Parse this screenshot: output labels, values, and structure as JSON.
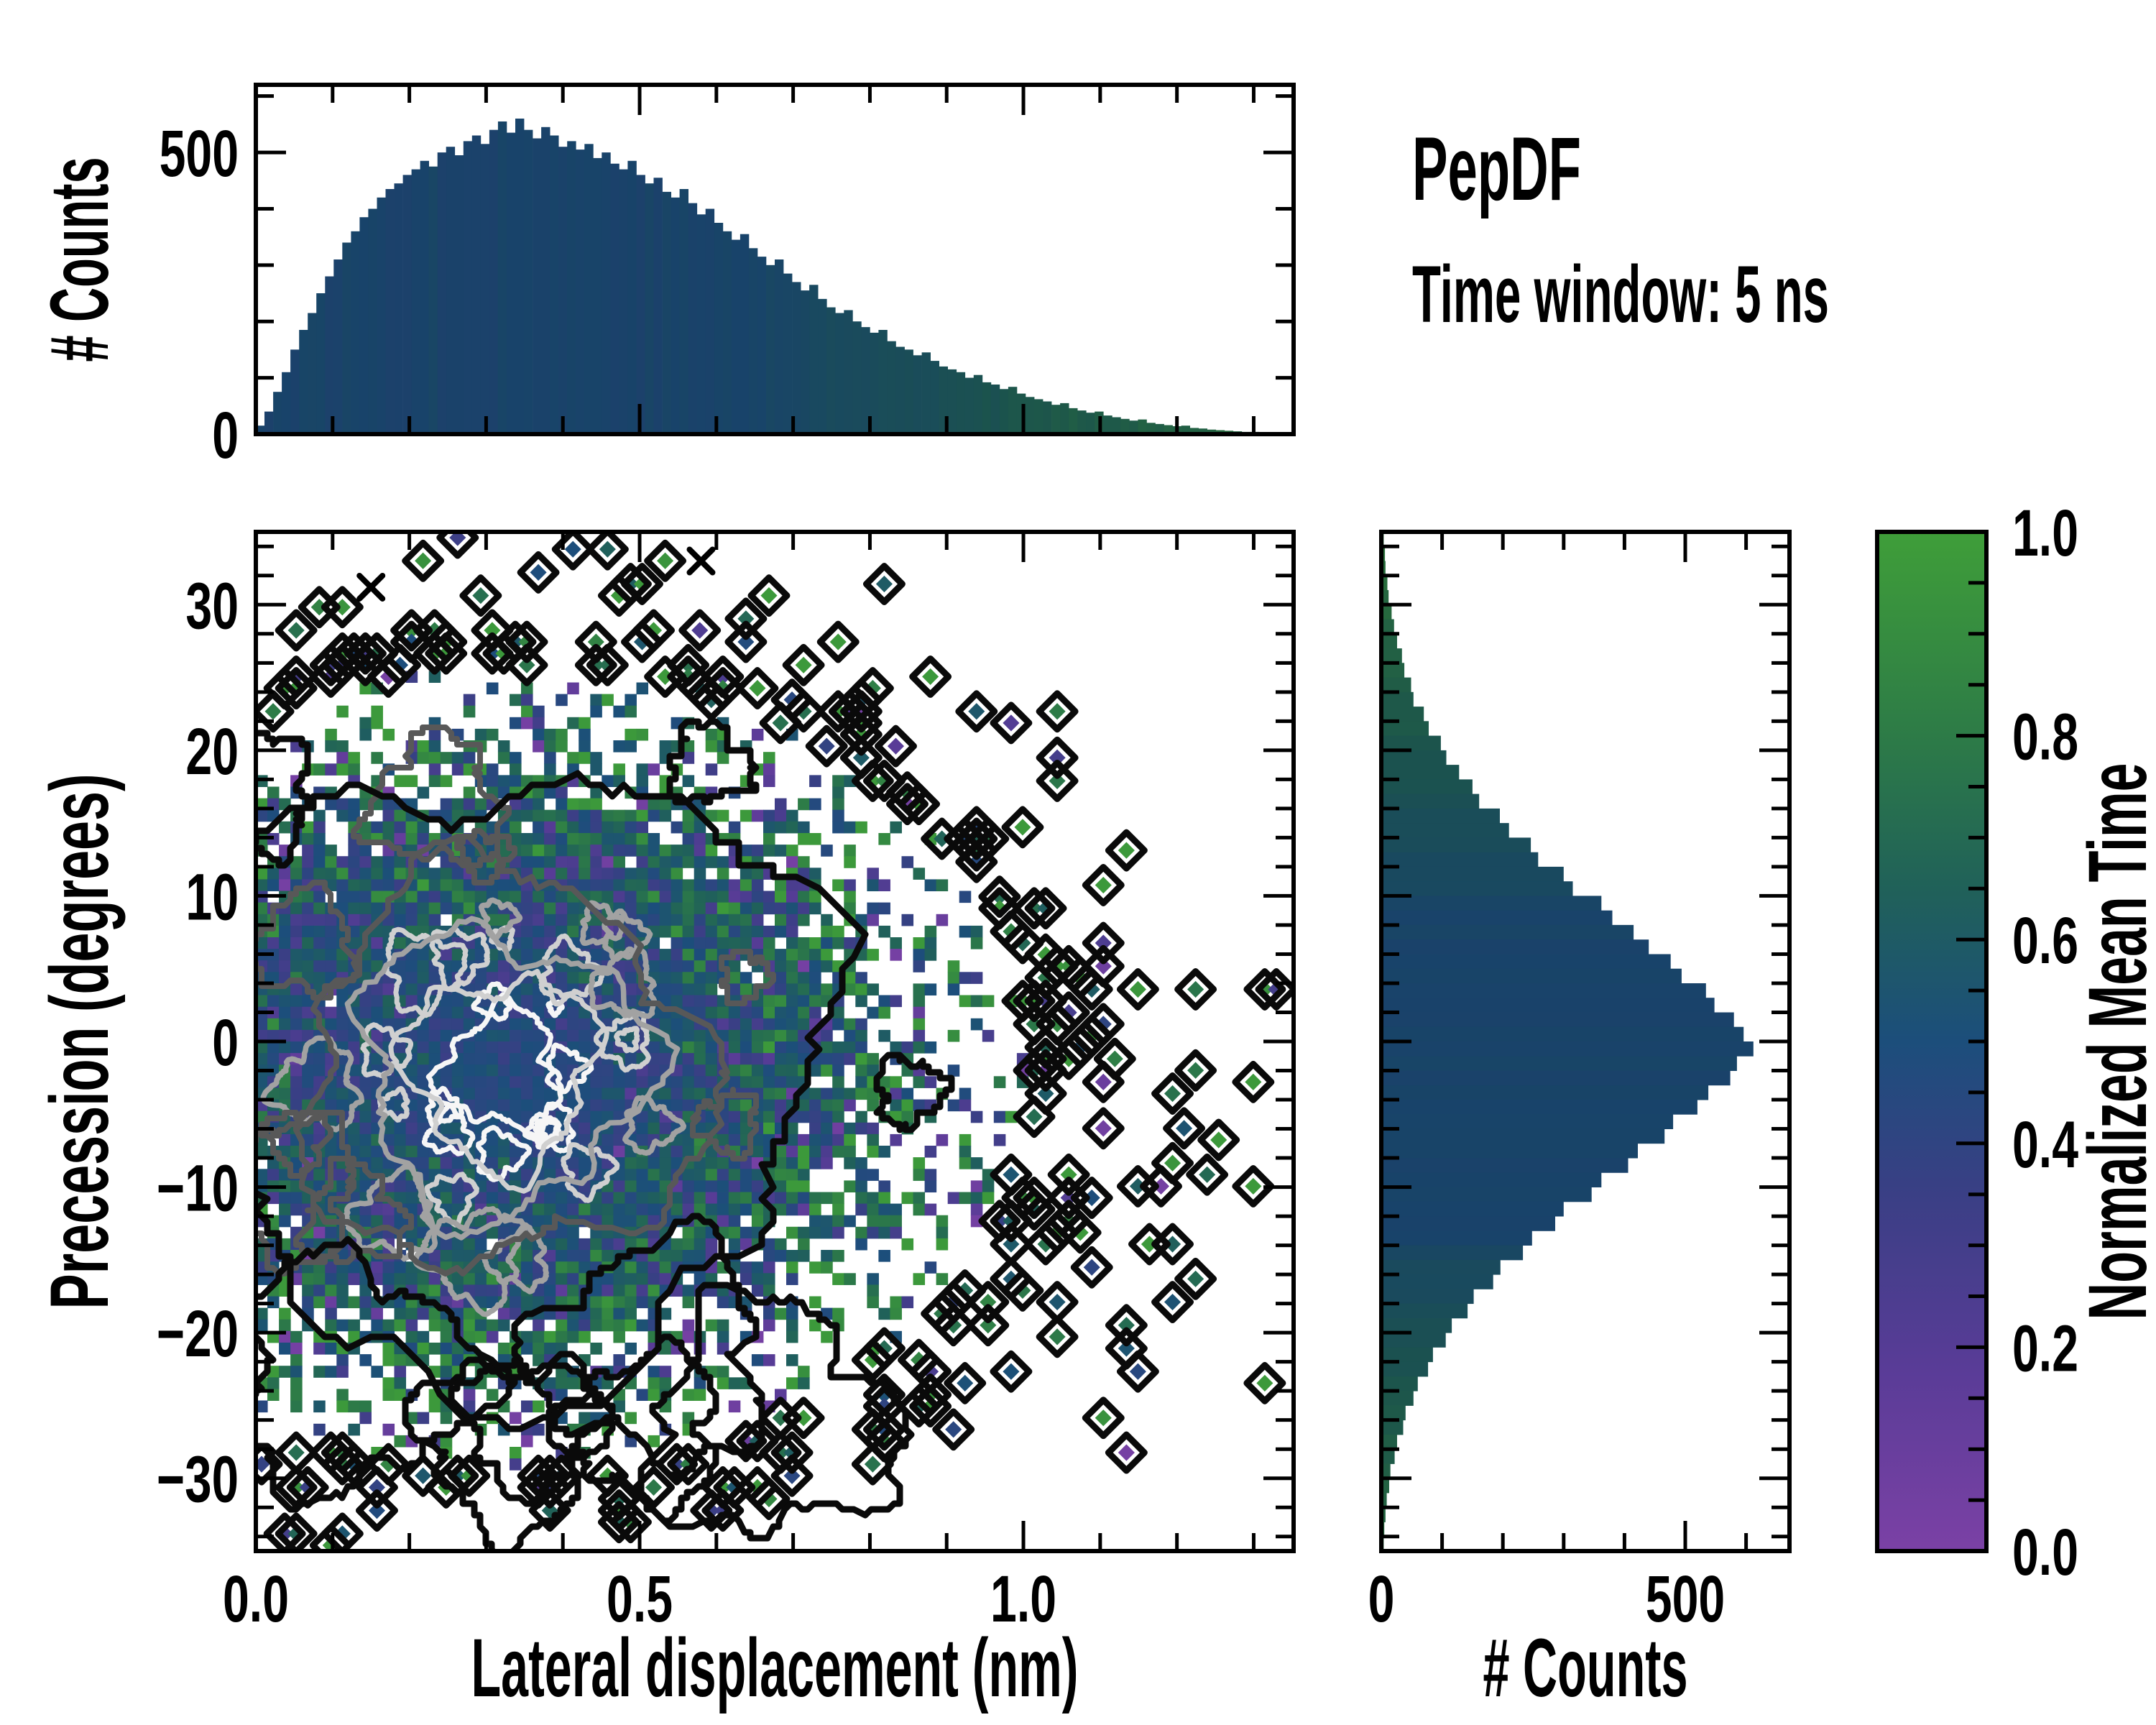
{
  "title": {
    "line1": "PepDF",
    "line2": "Time window: 5 ns"
  },
  "labels": {
    "top_ylabel": "# Counts",
    "main_xlabel": "Lateral displacement (nm)",
    "main_ylabel": "Precession (degrees)",
    "right_xlabel": "# Counts",
    "cbar_label": "Normalized Mean Time"
  },
  "colors": {
    "background": "#ffffff",
    "spine": "#000000",
    "text": "#000000",
    "hist_shade": 0.86,
    "colormap_stops": [
      [
        0.0,
        "#7b41a5"
      ],
      [
        0.18,
        "#593c97"
      ],
      [
        0.35,
        "#3a3f85"
      ],
      [
        0.5,
        "#1c4e7b"
      ],
      [
        0.65,
        "#206159"
      ],
      [
        0.8,
        "#2d7b47"
      ],
      [
        1.0,
        "#3f9e39"
      ]
    ],
    "contour_levels": [
      "#f6f6f6",
      "#d0d0d0",
      "#a2a2a2",
      "#585858",
      "#0a0a0a"
    ]
  },
  "axes": {
    "main": {
      "xlim": [
        0,
        1.352
      ],
      "ylim": [
        -35,
        35
      ],
      "xticks": [
        {
          "v": 0,
          "t": "0.0"
        },
        {
          "v": 0.5,
          "t": "0.5"
        },
        {
          "v": 1.0,
          "t": "1.0"
        }
      ],
      "yticks": [
        {
          "v": 30,
          "t": "30"
        },
        {
          "v": 20,
          "t": "20"
        },
        {
          "v": 10,
          "t": "10"
        },
        {
          "v": 0,
          "t": "0"
        },
        {
          "v": -10,
          "t": "−10"
        },
        {
          "v": -20,
          "t": "−20"
        },
        {
          "v": -30,
          "t": "−30"
        }
      ],
      "x_minor_step": 0.1,
      "y_minor_step": 2
    },
    "top": {
      "ylim": [
        0,
        620
      ],
      "yticks": [
        {
          "v": 0,
          "t": "0"
        },
        {
          "v": 500,
          "t": "500"
        }
      ],
      "y_minor_step": 100
    },
    "right": {
      "xlim": [
        0,
        670
      ],
      "xticks": [
        {
          "v": 0,
          "t": "0"
        },
        {
          "v": 500,
          "t": "500"
        }
      ],
      "x_minor_step": 100
    },
    "cbar": {
      "lim": [
        0,
        1
      ],
      "ticks": [
        {
          "v": 1.0,
          "t": "1.0"
        },
        {
          "v": 0.8,
          "t": "0.8"
        },
        {
          "v": 0.6,
          "t": "0.6"
        },
        {
          "v": 0.4,
          "t": "0.4"
        },
        {
          "v": 0.2,
          "t": "0.2"
        },
        {
          "v": 0.0,
          "t": "0.0"
        }
      ],
      "minor_step": 0.05
    }
  },
  "chart_data": [
    {
      "type": "bar",
      "id": "top_histogram",
      "title": "",
      "xlabel": "Lateral displacement (nm)",
      "ylabel": "# Counts",
      "x_start": 0,
      "bin_width": 0.011267,
      "ylim": [
        0,
        620
      ],
      "values": [
        15,
        40,
        75,
        110,
        150,
        185,
        215,
        250,
        280,
        310,
        340,
        360,
        385,
        400,
        420,
        435,
        445,
        460,
        470,
        485,
        475,
        500,
        510,
        495,
        520,
        530,
        515,
        540,
        555,
        535,
        560,
        540,
        525,
        545,
        530,
        510,
        520,
        505,
        515,
        490,
        500,
        480,
        470,
        485,
        460,
        445,
        455,
        430,
        420,
        435,
        410,
        390,
        400,
        375,
        360,
        345,
        355,
        330,
        315,
        300,
        310,
        285,
        270,
        255,
        265,
        240,
        225,
        215,
        220,
        200,
        190,
        180,
        185,
        165,
        155,
        150,
        140,
        145,
        130,
        120,
        115,
        110,
        100,
        105,
        92,
        88,
        80,
        84,
        72,
        66,
        62,
        58,
        52,
        55,
        46,
        42,
        38,
        40,
        33,
        30,
        27,
        24,
        26,
        20,
        18,
        16,
        14,
        15,
        11,
        10,
        8,
        7,
        6,
        5,
        4,
        4,
        3,
        3,
        2,
        2
      ],
      "color_rule": {
        "base_v": 0.5,
        "tail_start_x": 0.62,
        "tail_slope": 0.42,
        "noise": 0.05
      }
    },
    {
      "type": "bar",
      "id": "right_histogram",
      "orientation": "horizontal",
      "xlabel": "# Counts",
      "ylabel": "Precession (degrees)",
      "y_start": 35,
      "bin_height_deg": 1,
      "xlim": [
        0,
        670
      ],
      "values": [
        4,
        6,
        7,
        10,
        12,
        17,
        21,
        26,
        34,
        38,
        49,
        53,
        70,
        78,
        98,
        107,
        128,
        150,
        161,
        195,
        210,
        246,
        258,
        300,
        315,
        362,
        380,
        415,
        440,
        476,
        494,
        534,
        548,
        580,
        596,
        612,
        585,
        574,
        538,
        520,
        480,
        466,
        422,
        406,
        362,
        346,
        300,
        286,
        248,
        233,
        196,
        184,
        152,
        142,
        116,
        106,
        85,
        77,
        60,
        53,
        40,
        36,
        26,
        22,
        15,
        13,
        9,
        7,
        5,
        4
      ],
      "color_rule": {
        "base_v": 0.5,
        "center_y": -2,
        "tail_start": 10,
        "tail_slope": 0.013,
        "noise": 0.04
      }
    },
    {
      "type": "heatmap",
      "id": "joint_distribution",
      "xlabel": "Lateral displacement (nm)",
      "ylabel": "Precession (degrees)",
      "x_range": [
        0,
        1.352
      ],
      "y_range": [
        -35,
        35
      ],
      "grid": {
        "nx": 90,
        "ny": 88
      },
      "seed": 1337421,
      "density": {
        "cx": 0.33,
        "cy": -2,
        "sx": 0.3,
        "sy": 12.3
      },
      "occupancy": {
        "solid_above": 0.7,
        "scale": 2.35,
        "cap": 0.97,
        "isolated_below": 0.08
      },
      "value_model": {
        "base": 0.45,
        "spread_mean": 0.25,
        "pow": 1.3,
        "sd_base": 0.05,
        "sd_spread": 0.28
      },
      "contours": {
        "cx": 0.32,
        "cy": -2,
        "levels": [
          {
            "color": "#f6f6f6",
            "rx": 0.075,
            "ry": 4.0,
            "w": 7,
            "amp": 0.34,
            "snap": 0,
            "sats": 10
          },
          {
            "color": "#d0d0d0",
            "rx": 0.12,
            "ry": 6.5,
            "w": 7,
            "amp": 0.3,
            "snap": 0,
            "sats": 10
          },
          {
            "color": "#a2a2a2",
            "rx": 0.185,
            "ry": 9.5,
            "w": 7.5,
            "amp": 0.27,
            "snap": 0,
            "sats": 9
          },
          {
            "color": "#585858",
            "rx": 0.26,
            "ry": 13.5,
            "w": 8,
            "amp": 0.23,
            "snap": 8,
            "sats": 8
          },
          {
            "color": "#0a0a0a",
            "rx": 0.42,
            "ry": 21.0,
            "w": 9,
            "amp": 0.21,
            "snap": 16,
            "sats": 10
          }
        ]
      },
      "x_marks": [
        {
          "x": 0.58,
          "y": 33
        },
        {
          "x": 0.15,
          "y": 31.2
        }
      ]
    },
    {
      "type": "colorbar",
      "id": "colorbar",
      "label": "Normalized Mean Time",
      "range": [
        0.0,
        1.0
      ],
      "ticks": [
        1.0,
        0.8,
        0.6,
        0.4,
        0.2,
        0.0
      ]
    }
  ]
}
